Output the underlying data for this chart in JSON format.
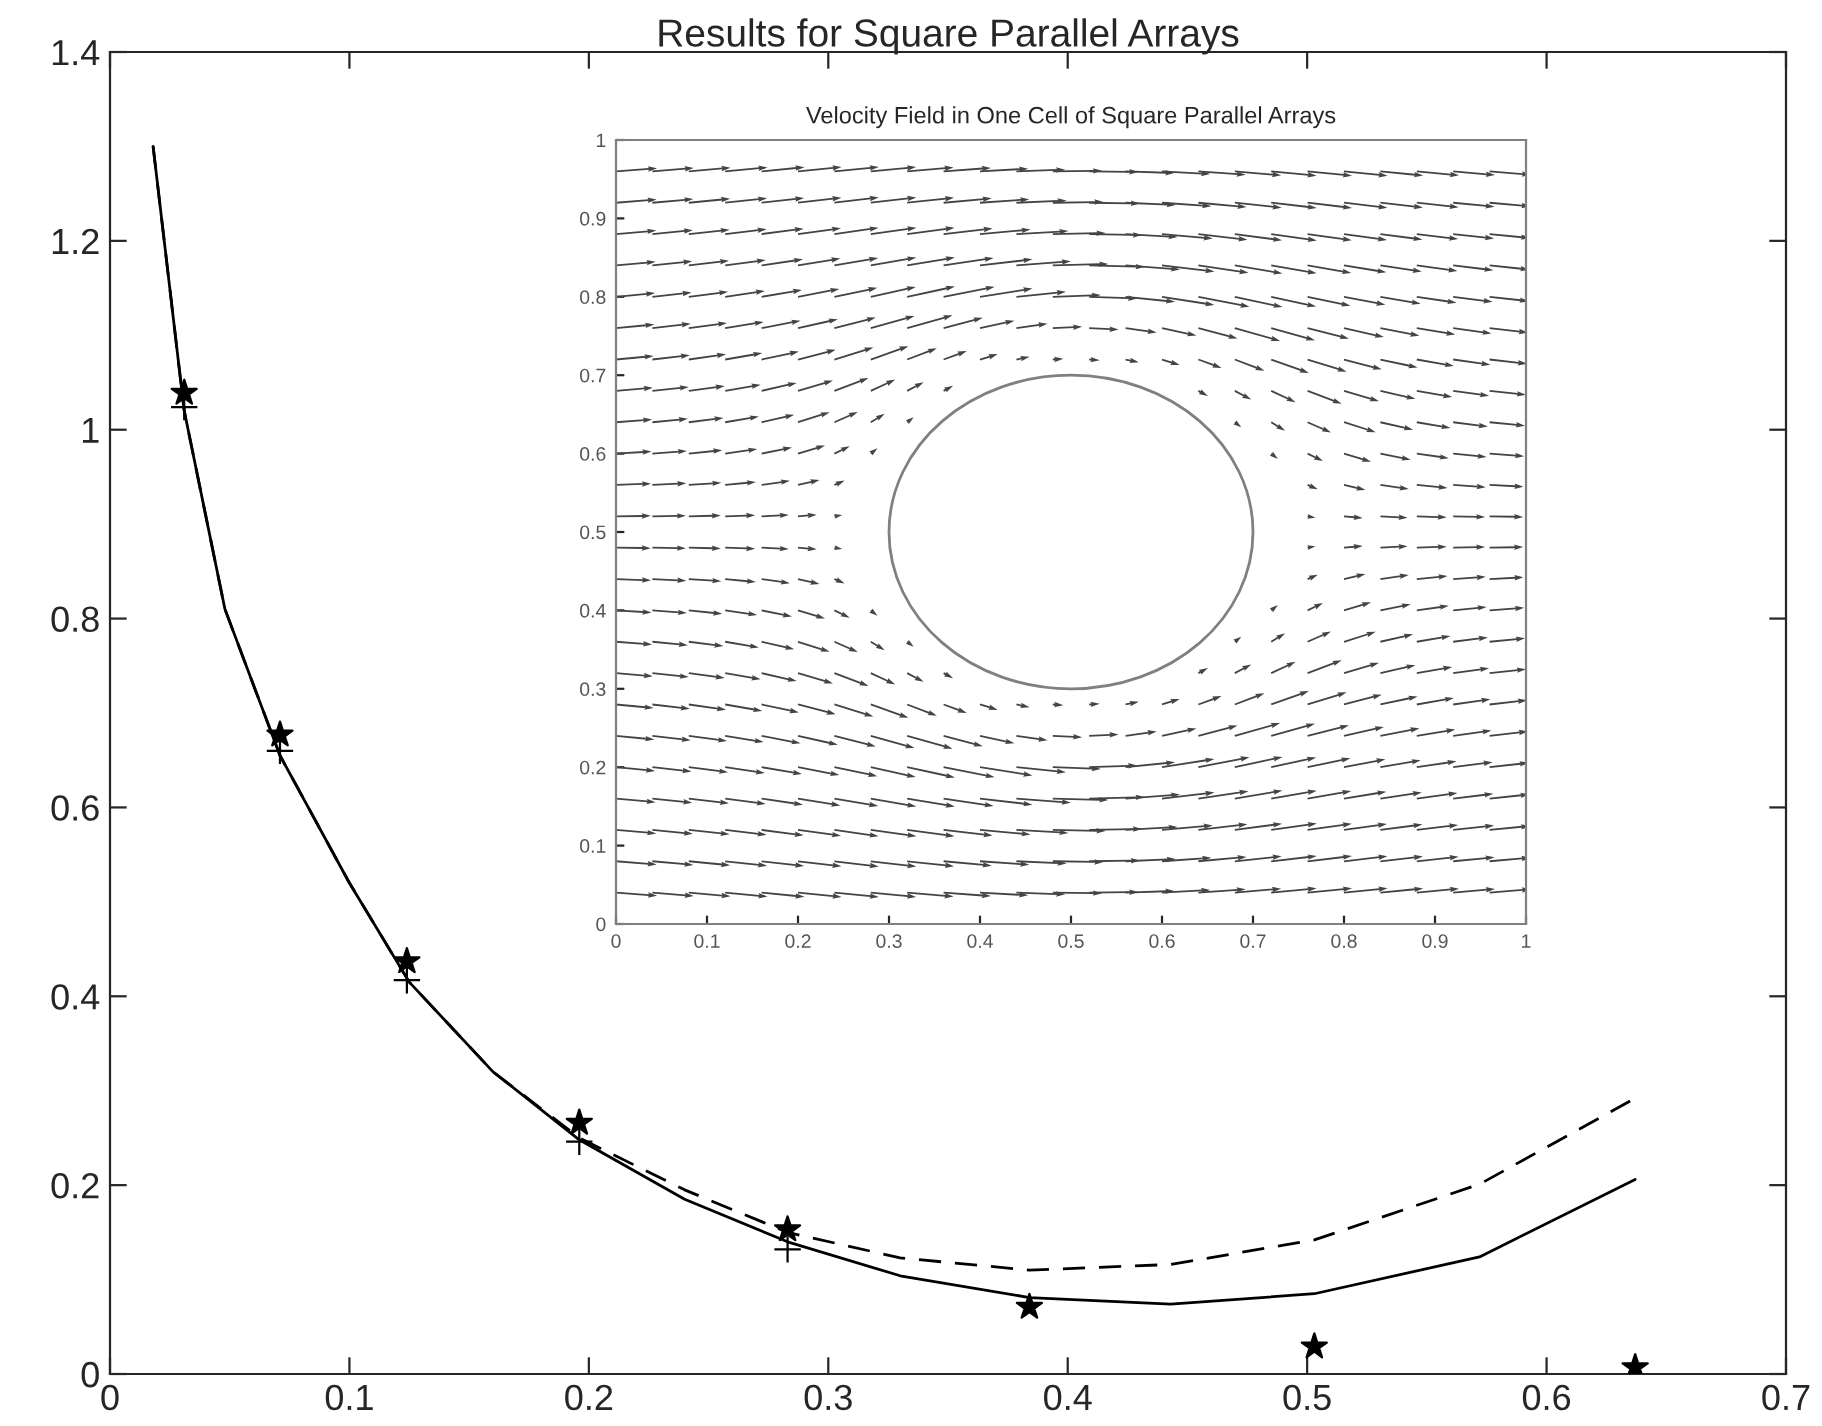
{
  "chart_data": [
    {
      "type": "line",
      "title": "Results for Square Parallel Arrays",
      "xlim": [
        0,
        0.7
      ],
      "ylim": [
        0,
        1.4
      ],
      "xticks": [
        0,
        0.1,
        0.2,
        0.3,
        0.4,
        0.5,
        0.6,
        0.7
      ],
      "yticks": [
        0,
        0.2,
        0.4,
        0.6,
        0.8,
        1,
        1.2,
        1.4
      ],
      "grid": false,
      "legend": false,
      "series": [
        {
          "type": "line",
          "line_style": "solid",
          "marker": "none",
          "color": "#000000",
          "x": [
            0.018,
            0.031,
            0.048,
            0.071,
            0.1,
            0.125,
            0.16,
            0.196,
            0.24,
            0.283,
            0.33,
            0.384,
            0.443,
            0.503,
            0.572,
            0.637
          ],
          "values": [
            1.3,
            1.02,
            0.81,
            0.655,
            0.52,
            0.415,
            0.32,
            0.248,
            0.185,
            0.14,
            0.104,
            0.081,
            0.074,
            0.085,
            0.124,
            0.206
          ]
        },
        {
          "type": "line",
          "line_style": "dashed",
          "marker": "none",
          "color": "#000000",
          "x": [
            0.018,
            0.031,
            0.048,
            0.071,
            0.1,
            0.125,
            0.16,
            0.196,
            0.24,
            0.283,
            0.33,
            0.384,
            0.443,
            0.503,
            0.572,
            0.637
          ],
          "values": [
            1.3,
            1.02,
            0.81,
            0.655,
            0.52,
            0.415,
            0.32,
            0.25,
            0.195,
            0.15,
            0.123,
            0.11,
            0.116,
            0.142,
            0.201,
            0.292
          ]
        },
        {
          "type": "scatter",
          "marker": "star",
          "color": "#000000",
          "x": [
            0.031,
            0.071,
            0.124,
            0.196,
            0.283,
            0.384,
            0.503,
            0.637
          ],
          "values": [
            1.039,
            0.677,
            0.437,
            0.266,
            0.153,
            0.071,
            0.029,
            0.007
          ]
        },
        {
          "type": "scatter",
          "marker": "cross",
          "color": "#000000",
          "x": [
            0.031,
            0.071,
            0.124,
            0.196,
            0.283
          ],
          "values": [
            1.024,
            0.66,
            0.417,
            0.246,
            0.132
          ]
        }
      ]
    },
    {
      "type": "line",
      "title": "Velocity Field in One Cell of Square Parallel Arrays",
      "xlim": [
        0,
        1
      ],
      "ylim": [
        0,
        1
      ],
      "xticks": [
        0,
        0.1,
        0.2,
        0.3,
        0.4,
        0.5,
        0.6,
        0.7,
        0.8,
        0.9,
        1
      ],
      "yticks": [
        0,
        0.1,
        0.2,
        0.3,
        0.4,
        0.5,
        0.6,
        0.7,
        0.8,
        0.9,
        1
      ],
      "grid": false,
      "legend": false
    }
  ]
}
